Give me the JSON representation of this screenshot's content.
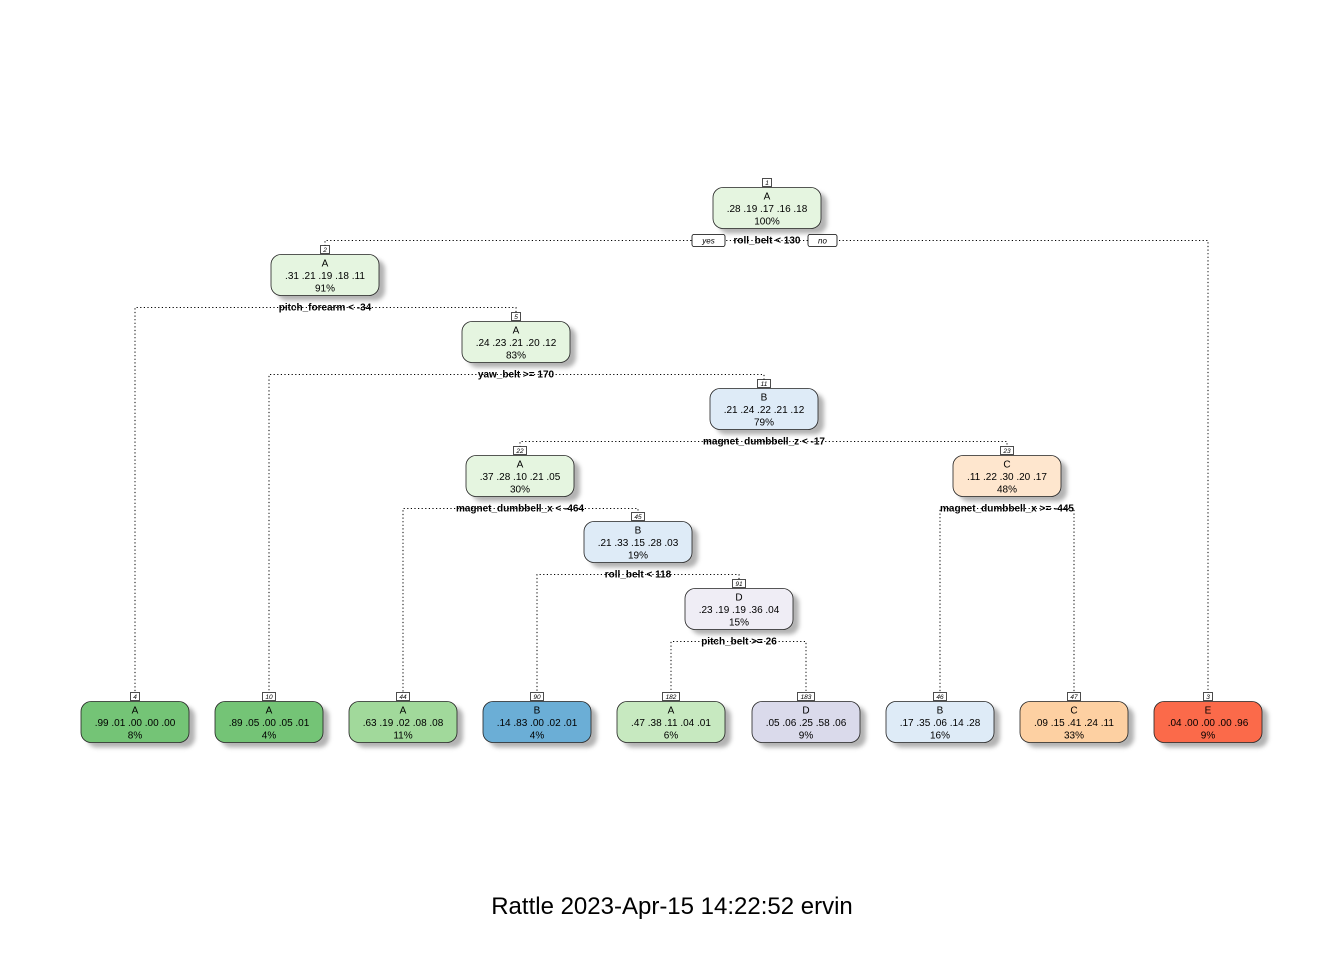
{
  "caption": "Rattle 2023-Apr-15 14:22:52 ervin",
  "yes_label": "yes",
  "no_label": "no",
  "nodes": [
    {
      "id": "1",
      "class": "A",
      "probs": ".28  .19  .17  .16  .18",
      "pct": "100%",
      "split": "roll_belt < 130",
      "color": "#e5f5e0"
    },
    {
      "id": "2",
      "class": "A",
      "probs": ".31  .21  .19  .18  .11",
      "pct": "91%",
      "split": "pitch_forearm < -34",
      "color": "#e5f5e0"
    },
    {
      "id": "5",
      "class": "A",
      "probs": ".24  .23  .21  .20  .12",
      "pct": "83%",
      "split": "yaw_belt >= 170",
      "color": "#e5f5e0"
    },
    {
      "id": "11",
      "class": "B",
      "probs": ".21  .24  .22  .21  .12",
      "pct": "79%",
      "split": "magnet_dumbbell_z < -17",
      "color": "#deebf7"
    },
    {
      "id": "22",
      "class": "A",
      "probs": ".37  .28  .10  .21  .05",
      "pct": "30%",
      "split": "magnet_dumbbell_x < -464",
      "color": "#e5f5e0"
    },
    {
      "id": "23",
      "class": "C",
      "probs": ".11  .22  .30  .20  .17",
      "pct": "48%",
      "split": "magnet_dumbbell_x >= -445",
      "color": "#fee6ce"
    },
    {
      "id": "45",
      "class": "B",
      "probs": ".21  .33  .15  .28  .03",
      "pct": "19%",
      "split": "roll_belt < 118",
      "color": "#deebf7"
    },
    {
      "id": "91",
      "class": "D",
      "probs": ".23  .19  .19  .36  .04",
      "pct": "15%",
      "split": "pitch_belt >= 26",
      "color": "#efedf5"
    },
    {
      "id": "4",
      "class": "A",
      "probs": ".99  .01  .00  .00  .00",
      "pct": "8%",
      "split": "",
      "color": "#74c476"
    },
    {
      "id": "10",
      "class": "A",
      "probs": ".89  .05  .00  .05  .01",
      "pct": "4%",
      "split": "",
      "color": "#74c476"
    },
    {
      "id": "44",
      "class": "A",
      "probs": ".63  .19  .02  .08  .08",
      "pct": "11%",
      "split": "",
      "color": "#a1d99b"
    },
    {
      "id": "90",
      "class": "B",
      "probs": ".14  .83  .00  .02  .01",
      "pct": "4%",
      "split": "",
      "color": "#6baed6"
    },
    {
      "id": "182",
      "class": "A",
      "probs": ".47  .38  .11  .04  .01",
      "pct": "6%",
      "split": "",
      "color": "#c7e9c0"
    },
    {
      "id": "183",
      "class": "D",
      "probs": ".05  .06  .25  .58  .06",
      "pct": "9%",
      "split": "",
      "color": "#dadaeb"
    },
    {
      "id": "46",
      "class": "B",
      "probs": ".17  .35  .06  .14  .28",
      "pct": "16%",
      "split": "",
      "color": "#deebf7"
    },
    {
      "id": "47",
      "class": "C",
      "probs": ".09  .15  .41  .24  .11",
      "pct": "33%",
      "split": "",
      "color": "#fdd0a2"
    },
    {
      "id": "3",
      "class": "E",
      "probs": ".04  .00  .00  .00  .96",
      "pct": "9%",
      "split": "",
      "color": "#fb6a4a"
    }
  ]
}
